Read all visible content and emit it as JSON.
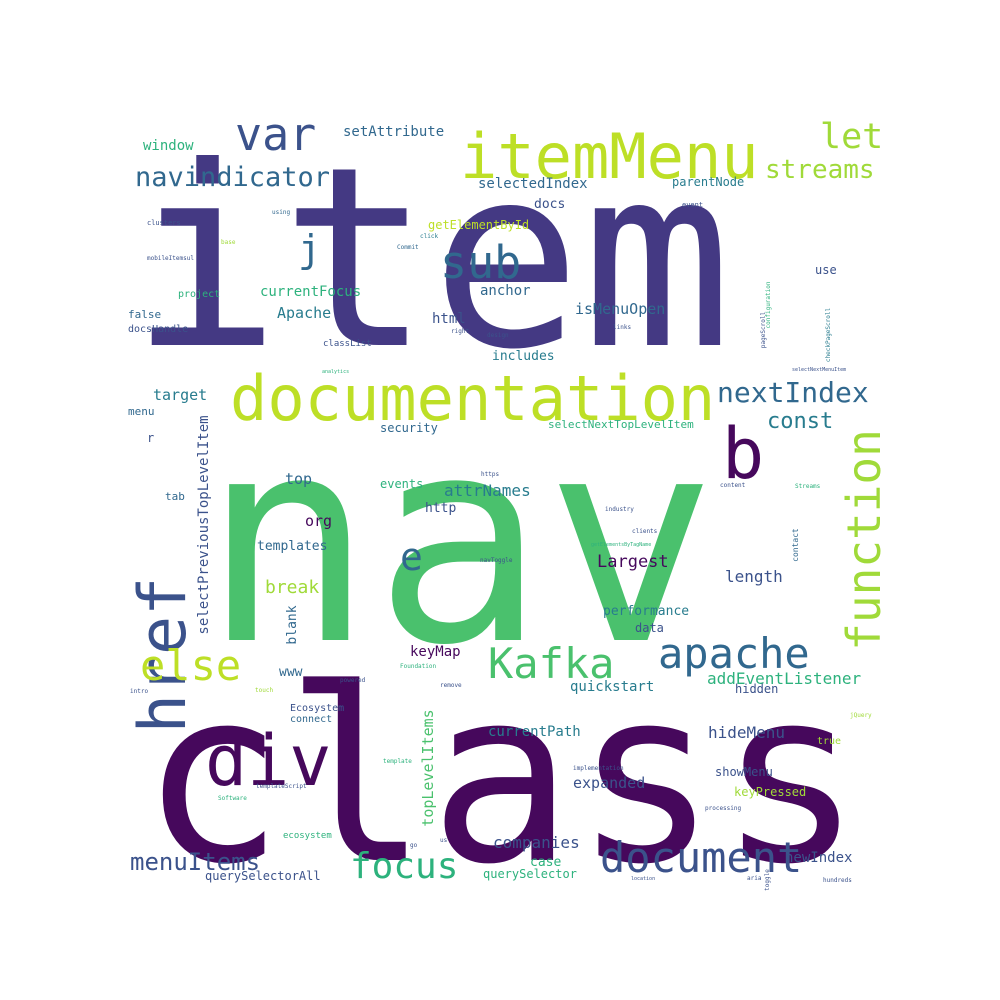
{
  "words": [
    {
      "text": "item",
      "color": "#443983"
    },
    {
      "text": "nav",
      "color": "#4ac16d"
    },
    {
      "text": "class",
      "color": "#46085c"
    },
    {
      "text": "itemMenu",
      "color": "#bddf26"
    },
    {
      "text": "documentation",
      "color": "#bddf26"
    },
    {
      "text": "href",
      "color": "#3b528b"
    },
    {
      "text": "function",
      "color": "#a0da39"
    },
    {
      "text": "div",
      "color": "#46085c"
    },
    {
      "text": "var",
      "color": "#3b528b"
    },
    {
      "text": "navindicator",
      "color": "#31688e"
    },
    {
      "text": "let",
      "color": "#a0da39"
    },
    {
      "text": "streams",
      "color": "#a0da39"
    },
    {
      "text": "window",
      "color": "#2db27d"
    },
    {
      "text": "setAttribute",
      "color": "#31688e"
    },
    {
      "text": "j",
      "color": "#31688e"
    },
    {
      "text": "sub",
      "color": "#31688e"
    },
    {
      "text": "b",
      "color": "#46085c"
    },
    {
      "text": "e",
      "color": "#31688e"
    },
    {
      "text": "else",
      "color": "#bddf26"
    },
    {
      "text": "Kafka",
      "color": "#4ac16d"
    },
    {
      "text": "apache",
      "color": "#31688e"
    },
    {
      "text": "nextIndex",
      "color": "#31688e"
    },
    {
      "text": "const",
      "color": "#287c8e"
    },
    {
      "text": "document",
      "color": "#3b528b"
    },
    {
      "text": "focus",
      "color": "#2db27d"
    },
    {
      "text": "menuItems",
      "color": "#3b528b"
    },
    {
      "text": "selectedIndex",
      "color": "#31688e"
    },
    {
      "text": "parentNode",
      "color": "#287c8e"
    },
    {
      "text": "docs",
      "color": "#3b528b"
    },
    {
      "text": "getElementById",
      "color": "#bddf26"
    },
    {
      "text": "currentFocus",
      "color": "#2db27d"
    },
    {
      "text": "anchor",
      "color": "#31688e"
    },
    {
      "text": "Apache",
      "color": "#287c8e"
    },
    {
      "text": "isMenuOpen",
      "color": "#31688e"
    },
    {
      "text": "html",
      "color": "#3b528b"
    },
    {
      "text": "includes",
      "color": "#287c8e"
    },
    {
      "text": "target",
      "color": "#287c8e"
    },
    {
      "text": "security",
      "color": "#31688e"
    },
    {
      "text": "selectNextTopLevelItem",
      "color": "#2db27d"
    },
    {
      "text": "selectPreviousTopLevelItem",
      "color": "#3b528b"
    },
    {
      "text": "top",
      "color": "#31688e"
    },
    {
      "text": "events",
      "color": "#2db27d"
    },
    {
      "text": "attrNames",
      "color": "#287c8e"
    },
    {
      "text": "http",
      "color": "#3b528b"
    },
    {
      "text": "org",
      "color": "#46085c"
    },
    {
      "text": "templates",
      "color": "#31688e"
    },
    {
      "text": "Largest",
      "color": "#46085c"
    },
    {
      "text": "length",
      "color": "#3b528b"
    },
    {
      "text": "break",
      "color": "#a0da39"
    },
    {
      "text": "blank",
      "color": "#31688e"
    },
    {
      "text": "performance",
      "color": "#287c8e"
    },
    {
      "text": "data",
      "color": "#3b528b"
    },
    {
      "text": "keyMap",
      "color": "#46085c"
    },
    {
      "text": "quickstart",
      "color": "#287c8e"
    },
    {
      "text": "addEventListener",
      "color": "#2db27d"
    },
    {
      "text": "hidden",
      "color": "#3b528b"
    },
    {
      "text": "topLevelItems",
      "color": "#4ac16d"
    },
    {
      "text": "currentPath",
      "color": "#287c8e"
    },
    {
      "text": "hideMenu",
      "color": "#3b528b"
    },
    {
      "text": "showMenu",
      "color": "#3b528b"
    },
    {
      "text": "expanded",
      "color": "#3b528b"
    },
    {
      "text": "keyPressed",
      "color": "#a0da39"
    },
    {
      "text": "companies",
      "color": "#3b528b"
    },
    {
      "text": "case",
      "color": "#2db27d"
    },
    {
      "text": "newIndex",
      "color": "#3b528b"
    },
    {
      "text": "querySelectorAll",
      "color": "#3b528b"
    },
    {
      "text": "querySelector",
      "color": "#2db27d"
    },
    {
      "text": "www",
      "color": "#31688e"
    },
    {
      "text": "Ecosystem",
      "color": "#3b528b"
    },
    {
      "text": "connect",
      "color": "#31688e"
    },
    {
      "text": "project",
      "color": "#2db27d"
    },
    {
      "text": "false",
      "color": "#31688e"
    },
    {
      "text": "docsHandle",
      "color": "#3b528b"
    },
    {
      "text": "menu",
      "color": "#31688e"
    },
    {
      "text": "r",
      "color": "#3b528b"
    },
    {
      "text": "tab",
      "color": "#31688e"
    },
    {
      "text": "use",
      "color": "#3b528b"
    },
    {
      "text": "classList",
      "color": "#3b528b"
    },
    {
      "text": "true",
      "color": "#a0da39"
    },
    {
      "text": "ecosystem",
      "color": "#2db27d"
    },
    {
      "text": "clusters",
      "color": "#3b528b"
    },
    {
      "text": "mobileItemsul",
      "color": "#3b528b"
    },
    {
      "text": "using",
      "color": "#31688e"
    },
    {
      "text": "Commit",
      "color": "#31688e"
    },
    {
      "text": "click",
      "color": "#287c8e"
    },
    {
      "text": "event",
      "color": "#3b528b"
    },
    {
      "text": "configuration",
      "color": "#2db27d"
    },
    {
      "text": "pageScroll",
      "color": "#3b528b"
    },
    {
      "text": "checkPageScroll",
      "color": "#287c8e"
    },
    {
      "text": "design",
      "color": "#3b528b"
    },
    {
      "text": "links",
      "color": "#3b528b"
    },
    {
      "text": "right",
      "color": "#3b528b"
    },
    {
      "text": "analytics",
      "color": "#2db27d"
    },
    {
      "text": "selectNextMenuItem",
      "color": "#3b528b"
    },
    {
      "text": "https",
      "color": "#3b528b"
    },
    {
      "text": "content",
      "color": "#3b528b"
    },
    {
      "text": "Streams",
      "color": "#2db27d"
    },
    {
      "text": "industry",
      "color": "#3b528b"
    },
    {
      "text": "clients",
      "color": "#3b528b"
    },
    {
      "text": "contact",
      "color": "#31688e"
    },
    {
      "text": "navToggle",
      "color": "#3b528b"
    },
    {
      "text": "getElementsByTagName",
      "color": "#2db27d"
    },
    {
      "text": "Foundation",
      "color": "#2db27d"
    },
    {
      "text": "powered",
      "color": "#3b528b"
    },
    {
      "text": "remove",
      "color": "#3b528b"
    },
    {
      "text": "intro",
      "color": "#3b528b"
    },
    {
      "text": "touch",
      "color": "#a0da39"
    },
    {
      "text": "template",
      "color": "#2db27d"
    },
    {
      "text": "templateScript",
      "color": "#3b528b"
    },
    {
      "text": "Software",
      "color": "#2db27d"
    },
    {
      "text": "implementation",
      "color": "#3b528b"
    },
    {
      "text": "processing",
      "color": "#3b528b"
    },
    {
      "text": "location",
      "color": "#3b528b"
    },
    {
      "text": "aria",
      "color": "#3b528b"
    },
    {
      "text": "toggle",
      "color": "#3b528b"
    },
    {
      "text": "hundreds",
      "color": "#3b528b"
    },
    {
      "text": "jQuery",
      "color": "#a0da39"
    },
    {
      "text": "us",
      "color": "#3b528b"
    },
    {
      "text": "go",
      "color": "#3b528b"
    },
    {
      "text": "base",
      "color": "#a0da39"
    }
  ]
}
